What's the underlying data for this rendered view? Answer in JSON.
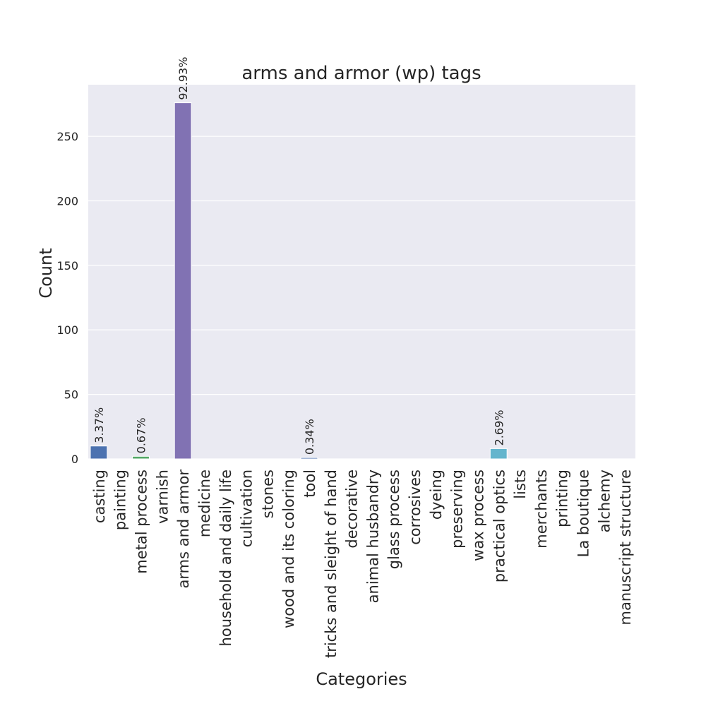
{
  "chart_data": {
    "type": "bar",
    "title": "arms and armor (wp) tags",
    "xlabel": "Categories",
    "ylabel": "Count",
    "ylim": [
      0,
      290
    ],
    "yticks": [
      0,
      50,
      100,
      150,
      200,
      250
    ],
    "grid": true,
    "categories": [
      "casting",
      "painting",
      "metal process",
      "varnish",
      "arms and armor",
      "medicine",
      "household and daily life",
      "cultivation",
      "stones",
      "wood and its coloring",
      "tool",
      "tricks and sleight of hand",
      "decorative",
      "animal husbandry",
      "glass process",
      "corrosives",
      "dyeing",
      "preserving",
      "wax process",
      "practical optics",
      "lists",
      "merchants",
      "printing",
      "La boutique",
      "alchemy",
      "manuscript structure"
    ],
    "values": [
      10,
      0,
      2,
      0,
      276,
      0,
      0,
      0,
      0,
      0,
      1,
      0,
      0,
      0,
      0,
      0,
      0,
      0,
      0,
      8,
      0,
      0,
      0,
      0,
      0,
      0
    ],
    "bar_labels": [
      "3.37%",
      "",
      "0.67%",
      "",
      "92.93%",
      "",
      "",
      "",
      "",
      "",
      "0.34%",
      "",
      "",
      "",
      "",
      "",
      "",
      "",
      "",
      "2.69%",
      "",
      "",
      "",
      "",
      "",
      ""
    ],
    "colors": [
      "#4c72b0",
      "#dd8452",
      "#55a868",
      "#c44e52",
      "#8172b3",
      "#937860",
      "#da8bc3",
      "#8c8c8c",
      "#ccb974",
      "#64b5cd",
      "#4c72b0",
      "#dd8452",
      "#55a868",
      "#c44e52",
      "#8172b3",
      "#937860",
      "#da8bc3",
      "#8c8c8c",
      "#ccb974",
      "#64b5cd",
      "#4c72b0",
      "#dd8452",
      "#55a868",
      "#c44e52",
      "#8172b3",
      "#937860"
    ],
    "background": "#eaeaf2"
  }
}
